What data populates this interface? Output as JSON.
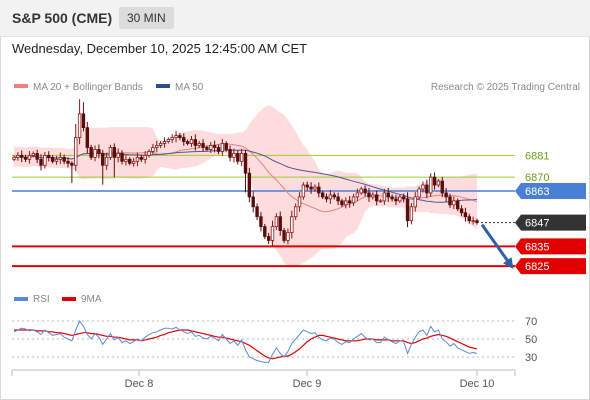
{
  "header": {
    "title": "S&P 500 (CME)",
    "interval": "30 MIN"
  },
  "timestamp": "Wednesday, December 10, 2025 12:45:00 AM CET",
  "colors": {
    "candle_up": "#8b1a1a",
    "candle_down": "#5a0d0d",
    "bollinger_fill": "#fbd0d0",
    "ma20": "#e88080",
    "ma50": "#555599",
    "resistance_line": "#9acd32",
    "pivot_line": "#4a7fd6",
    "support_line": "#e00000",
    "current_badge": "#333333",
    "rsi": "#5b8ad6",
    "rsi_ma": "#e00000",
    "arrow": "#2e5fa8"
  },
  "chart_data": [
    {
      "type": "candlestick",
      "title": "",
      "legend": [
        {
          "name": "MA 20 + Bollinger Bands",
          "color": "#f08080"
        },
        {
          "name": "MA 50",
          "color": "#2c4f8c"
        }
      ],
      "source": "Research © 2025 Trading Central",
      "x_ticks": [
        "Dec 8",
        "Dec 9",
        "Dec 10"
      ],
      "levels": [
        {
          "label": "6881",
          "value": 6881,
          "kind": "resistance"
        },
        {
          "label": "6870",
          "value": 6870,
          "kind": "resistance"
        },
        {
          "label": "6863",
          "value": 6863,
          "kind": "pivot"
        },
        {
          "label": "6847",
          "value": 6847,
          "kind": "current"
        },
        {
          "label": "6835",
          "value": 6835,
          "kind": "support"
        },
        {
          "label": "6825",
          "value": 6825,
          "kind": "support"
        }
      ],
      "ylim": [
        6818,
        6910
      ],
      "price_path": [
        6880,
        6881,
        6880,
        6879,
        6881,
        6882,
        6879,
        6876,
        6881,
        6880,
        6878,
        6879,
        6880,
        6878,
        6877,
        6876,
        6890,
        6902,
        6895,
        6885,
        6880,
        6884,
        6882,
        6876,
        6880,
        6885,
        6880,
        6882,
        6878,
        6879,
        6877,
        6878,
        6880,
        6879,
        6881,
        6883,
        6885,
        6886,
        6887,
        6888,
        6889,
        6890,
        6891,
        6890,
        6888,
        6887,
        6889,
        6886,
        6887,
        6885,
        6884,
        6886,
        6885,
        6883,
        6887,
        6884,
        6880,
        6882,
        6878,
        6882,
        6872,
        6860,
        6855,
        6850,
        6845,
        6840,
        6838,
        6845,
        6850,
        6843,
        6838,
        6842,
        6850,
        6855,
        6860,
        6866,
        6865,
        6864,
        6865,
        6862,
        6860,
        6859,
        6861,
        6860,
        6858,
        6856,
        6858,
        6857,
        6860,
        6862,
        6864,
        6862,
        6860,
        6861,
        6858,
        6858,
        6862,
        6860,
        6859,
        6858,
        6860,
        6859,
        6848,
        6855,
        6860,
        6864,
        6866,
        6862,
        6870,
        6866,
        6868,
        6862,
        6860,
        6856,
        6858,
        6854,
        6852,
        6850,
        6848,
        6848,
        6847
      ]
    },
    {
      "type": "line",
      "title": "",
      "series": [
        {
          "name": "RSI",
          "values": [
            58,
            60,
            62,
            61,
            59,
            60,
            58,
            55,
            60,
            57,
            54,
            55,
            56,
            52,
            50,
            48,
            60,
            70,
            64,
            55,
            50,
            56,
            52,
            44,
            50,
            56,
            49,
            52,
            46,
            48,
            45,
            47,
            50,
            48,
            52,
            55,
            57,
            58,
            60,
            62,
            62,
            61,
            63,
            60,
            58,
            56,
            58,
            53,
            54,
            51,
            50,
            53,
            51,
            48,
            55,
            50,
            45,
            48,
            43,
            49,
            38,
            30,
            28,
            26,
            25,
            24,
            24,
            33,
            40,
            34,
            30,
            36,
            45,
            50,
            55,
            60,
            58,
            56,
            57,
            52,
            49,
            48,
            51,
            50,
            46,
            44,
            47,
            46,
            50,
            53,
            56,
            52,
            49,
            50,
            46,
            46,
            52,
            49,
            47,
            45,
            48,
            47,
            34,
            44,
            52,
            58,
            60,
            54,
            64,
            58,
            60,
            50,
            47,
            42,
            45,
            40,
            38,
            36,
            34,
            35,
            34
          ]
        },
        {
          "name": "9MA",
          "values": [
            60,
            60,
            60,
            60,
            60,
            60,
            59,
            59,
            59,
            58,
            58,
            57,
            57,
            56,
            55,
            54,
            55,
            56,
            57,
            57,
            56,
            56,
            55,
            54,
            53,
            53,
            52,
            52,
            51,
            50,
            49,
            49,
            49,
            48,
            49,
            50,
            51,
            52,
            54,
            55,
            57,
            58,
            59,
            60,
            60,
            60,
            59,
            58,
            57,
            56,
            55,
            54,
            53,
            52,
            52,
            51,
            50,
            49,
            48,
            47,
            45,
            43,
            40,
            37,
            34,
            31,
            29,
            28,
            29,
            30,
            31,
            31,
            33,
            36,
            39,
            43,
            47,
            50,
            52,
            54,
            54,
            53,
            52,
            51,
            50,
            49,
            48,
            48,
            48,
            48,
            49,
            50,
            50,
            50,
            49,
            49,
            49,
            49,
            48,
            48,
            48,
            48,
            46,
            45,
            46,
            48,
            50,
            51,
            53,
            54,
            55,
            54,
            53,
            51,
            49,
            47,
            45,
            43,
            41,
            40,
            39
          ]
        }
      ],
      "ylim": [
        20,
        80
      ],
      "y_ticks": [
        70,
        50,
        30
      ]
    }
  ]
}
